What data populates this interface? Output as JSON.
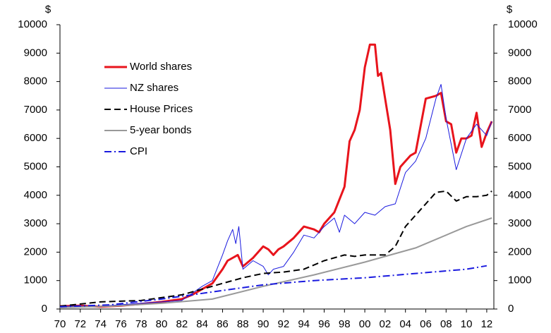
{
  "chart_data": {
    "type": "line",
    "ylabel": "$",
    "y2label": "$",
    "ylim": [
      0,
      10000
    ],
    "yticks": [
      0,
      1000,
      2000,
      3000,
      4000,
      5000,
      6000,
      7000,
      8000,
      9000,
      10000
    ],
    "y2lim": [
      0,
      10000
    ],
    "y2ticks": [
      0,
      1000,
      2000,
      3000,
      4000,
      5000,
      6000,
      7000,
      8000,
      9000,
      10000
    ],
    "xlim": [
      1970,
      2012.7
    ],
    "xticks": [
      {
        "value": 1970,
        "label": "70"
      },
      {
        "value": 1972,
        "label": "72"
      },
      {
        "value": 1974,
        "label": "74"
      },
      {
        "value": 1976,
        "label": "76"
      },
      {
        "value": 1978,
        "label": "78"
      },
      {
        "value": 1980,
        "label": "80"
      },
      {
        "value": 1982,
        "label": "82"
      },
      {
        "value": 1984,
        "label": "84"
      },
      {
        "value": 1986,
        "label": "86"
      },
      {
        "value": 1988,
        "label": "88"
      },
      {
        "value": 1990,
        "label": "90"
      },
      {
        "value": 1992,
        "label": "92"
      },
      {
        "value": 1994,
        "label": "94"
      },
      {
        "value": 1996,
        "label": "96"
      },
      {
        "value": 1998,
        "label": "98"
      },
      {
        "value": 2000,
        "label": "00"
      },
      {
        "value": 2002,
        "label": "02"
      },
      {
        "value": 2004,
        "label": "04"
      },
      {
        "value": 2006,
        "label": "06"
      },
      {
        "value": 2008,
        "label": "08"
      },
      {
        "value": 2010,
        "label": "10"
      },
      {
        "value": 2012,
        "label": "12"
      }
    ],
    "grid": false,
    "legend": "upper left",
    "series": [
      {
        "name": "World shares",
        "color": "#e8141c",
        "width": 3,
        "dash": "solid",
        "x": [
          1970,
          1972,
          1974,
          1976,
          1978,
          1980,
          1982,
          1983,
          1984,
          1985,
          1986,
          1986.5,
          1987,
          1987.5,
          1988,
          1989,
          1990,
          1990.5,
          1991,
          1991.5,
          1992,
          1993,
          1994,
          1995,
          1995.5,
          1996,
          1997,
          1998,
          1998.5,
          1999,
          1999.5,
          2000,
          2000.5,
          2001,
          2001.3,
          2001.6,
          2002,
          2002.5,
          2003,
          2003.5,
          2004,
          2004.5,
          2005,
          2006,
          2007,
          2007.5,
          2008,
          2008.5,
          2009,
          2009.5,
          2010,
          2010.5,
          2011,
          2011.5,
          2012,
          2012.5
        ],
        "values": [
          100,
          120,
          80,
          120,
          180,
          250,
          350,
          500,
          700,
          900,
          1400,
          1700,
          1800,
          1900,
          1500,
          1800,
          2200,
          2100,
          1900,
          2100,
          2200,
          2500,
          2900,
          2800,
          2700,
          3000,
          3400,
          4300,
          5900,
          6300,
          7000,
          8500,
          9300,
          9300,
          8200,
          8300,
          7400,
          6300,
          4400,
          5000,
          5200,
          5400,
          5500,
          7400,
          7500,
          7600,
          6600,
          6500,
          5500,
          6000,
          6000,
          6100,
          6900,
          5700,
          6200,
          6600
        ]
      },
      {
        "name": "NZ shares",
        "color": "#1a1adf",
        "width": 1,
        "dash": "solid",
        "x": [
          1970,
          1974,
          1978,
          1982,
          1984,
          1985,
          1986,
          1986.5,
          1987,
          1987.3,
          1987.6,
          1988,
          1989,
          1990,
          1990.5,
          1991,
          1992,
          1993,
          1994,
          1995,
          1996,
          1997,
          1997.5,
          1998,
          1999,
          2000,
          2001,
          2002,
          2003,
          2004,
          2005,
          2006,
          2007,
          2007.5,
          2008,
          2009,
          2010,
          2011,
          2012,
          2012.5
        ],
        "values": [
          100,
          100,
          200,
          300,
          800,
          1000,
          1900,
          2400,
          2800,
          2300,
          2900,
          1400,
          1700,
          1500,
          1200,
          1400,
          1500,
          2000,
          2600,
          2500,
          2900,
          3200,
          2700,
          3300,
          3000,
          3400,
          3300,
          3600,
          3700,
          4800,
          5200,
          6000,
          7400,
          7900,
          6700,
          4900,
          6000,
          6500,
          6100,
          6600
        ]
      },
      {
        "name": "House Prices",
        "color": "#000000",
        "width": 2,
        "dash": "dashed",
        "x": [
          1970,
          1974,
          1978,
          1982,
          1984,
          1986,
          1988,
          1990,
          1992,
          1994,
          1996,
          1998,
          1999,
          2000,
          2002,
          2003,
          2004,
          2005,
          2006,
          2007,
          2008,
          2009,
          2010,
          2011,
          2012,
          2012.5
        ],
        "values": [
          100,
          250,
          300,
          500,
          700,
          900,
          1100,
          1250,
          1300,
          1400,
          1700,
          1900,
          1850,
          1900,
          1900,
          2200,
          2900,
          3300,
          3700,
          4100,
          4150,
          3800,
          3950,
          3950,
          4000,
          4150
        ]
      },
      {
        "name": "5-year bonds",
        "color": "#999999",
        "width": 2,
        "dash": "solid",
        "x": [
          1970,
          1975,
          1980,
          1985,
          1990,
          1995,
          2000,
          2005,
          2010,
          2012.5
        ],
        "values": [
          50,
          100,
          200,
          350,
          800,
          1200,
          1650,
          2150,
          2900,
          3200
        ]
      },
      {
        "name": "CPI",
        "color": "#1a1adf",
        "width": 2,
        "dash": "dashdot",
        "x": [
          1970,
          1975,
          1980,
          1985,
          1990,
          1995,
          2000,
          2005,
          2010,
          2012
        ],
        "values": [
          80,
          150,
          350,
          600,
          850,
          1000,
          1100,
          1250,
          1400,
          1520
        ]
      }
    ]
  }
}
